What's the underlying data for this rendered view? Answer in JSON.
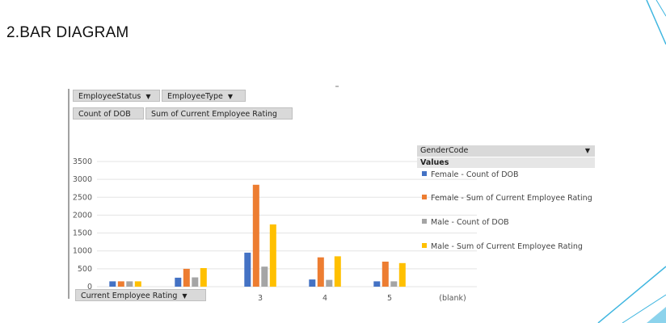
{
  "slide": {
    "title": "2.BAR DIAGRAM"
  },
  "pivot": {
    "filters": [
      "EmployeeStatus",
      "EmployeeType"
    ],
    "values": [
      "Count of DOB",
      "Sum of Current Employee Rating"
    ],
    "axis_field": "Current Employee Rating",
    "legend_field": "GenderCode",
    "legend_values_label": "Values",
    "dropdown_glyph": "▼"
  },
  "colors": {
    "female_count": "#4472C4",
    "female_sum": "#ED7D31",
    "male_count": "#A5A5A5",
    "male_sum": "#FFC000",
    "accent_line": "#3fb6e0"
  },
  "chart_data": {
    "type": "bar",
    "categories": [
      "",
      "",
      "3",
      "4",
      "5",
      "(blank)"
    ],
    "series": [
      {
        "name": "Female - Count of DOB",
        "values": [
          150,
          250,
          950,
          200,
          150,
          0
        ]
      },
      {
        "name": "Female - Sum of Current Employee Rating",
        "values": [
          150,
          500,
          2850,
          820,
          700,
          0
        ]
      },
      {
        "name": "Male - Count of DOB",
        "values": [
          150,
          260,
          560,
          190,
          150,
          0
        ]
      },
      {
        "name": "Male - Sum of Current Employee Rating",
        "values": [
          150,
          520,
          1740,
          850,
          660,
          0
        ]
      }
    ],
    "yticks": [
      "0",
      "500",
      "1000",
      "1500",
      "2000",
      "2500",
      "3000",
      "3500"
    ],
    "ylim": [
      0,
      3500
    ],
    "grid": true,
    "legend": "right"
  }
}
